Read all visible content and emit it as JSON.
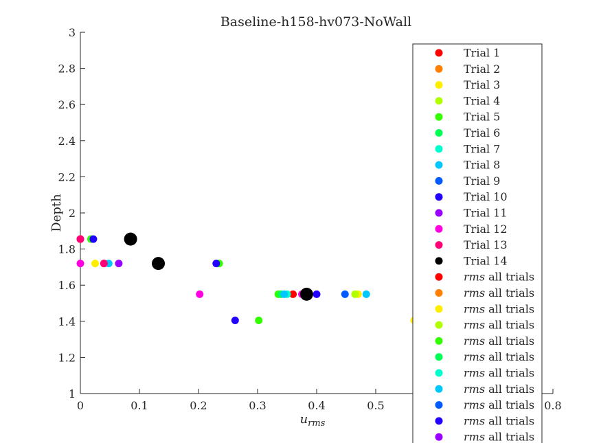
{
  "chart_data": {
    "type": "scatter",
    "title": "Baseline-h158-hv073-NoWall",
    "xlabel": "u",
    "xlabel_sub": "rms",
    "ylabel": "Depth",
    "xlim": [
      0,
      0.8
    ],
    "ylim": [
      1,
      3
    ],
    "xticks": [
      0,
      0.1,
      0.2,
      0.3,
      0.4,
      0.5,
      0.6,
      0.7,
      0.8
    ],
    "yticks": [
      1,
      1.2,
      1.4,
      1.6,
      1.8,
      2,
      2.2,
      2.4,
      2.6,
      2.8,
      3
    ],
    "grid": false,
    "legend_position": "right",
    "series": [
      {
        "name": "Trial 1",
        "color": "#ff0000",
        "points": [
          [
            0.0,
            1.855
          ],
          [
            0.04,
            1.72
          ],
          [
            0.36,
            1.55
          ]
        ]
      },
      {
        "name": "Trial 2",
        "color": "#ff7f00",
        "points": [
          [
            0.0,
            1.855
          ],
          [
            0.04,
            1.72
          ]
        ]
      },
      {
        "name": "Trial 3",
        "color": "#ffee00",
        "points": [
          [
            0.025,
            1.72
          ],
          [
            0.47,
            1.55
          ],
          [
            0.565,
            1.405
          ]
        ]
      },
      {
        "name": "Trial 4",
        "color": "#b2ff00",
        "points": [
          [
            0.018,
            1.855
          ],
          [
            0.465,
            1.55
          ]
        ]
      },
      {
        "name": "Trial 5",
        "color": "#33ff00",
        "points": [
          [
            0.018,
            1.855
          ],
          [
            0.235,
            1.72
          ],
          [
            0.302,
            1.405
          ],
          [
            0.335,
            1.55
          ]
        ]
      },
      {
        "name": "Trial 6",
        "color": "#00ff55",
        "points": [
          [
            0.34,
            1.55
          ]
        ]
      },
      {
        "name": "Trial 7",
        "color": "#00ffcc",
        "points": [
          [
            0.35,
            1.55
          ]
        ]
      },
      {
        "name": "Trial 8",
        "color": "#00c8ff",
        "points": [
          [
            0.048,
            1.72
          ],
          [
            0.345,
            1.55
          ],
          [
            0.484,
            1.55
          ]
        ]
      },
      {
        "name": "Trial 9",
        "color": "#005aff",
        "points": [
          [
            0.448,
            1.55
          ]
        ]
      },
      {
        "name": "Trial 10",
        "color": "#2200ff",
        "points": [
          [
            0.022,
            1.855
          ],
          [
            0.23,
            1.72
          ],
          [
            0.262,
            1.405
          ],
          [
            0.4,
            1.55
          ]
        ]
      },
      {
        "name": "Trial 11",
        "color": "#9900ff",
        "points": [
          [
            0.065,
            1.72
          ]
        ]
      },
      {
        "name": "Trial 12",
        "color": "#ff00e1",
        "points": [
          [
            0.0,
            1.72
          ],
          [
            0.202,
            1.55
          ],
          [
            0.375,
            1.55
          ]
        ]
      },
      {
        "name": "Trial 13",
        "color": "#ff0077",
        "points": [
          [
            0.0,
            1.855
          ],
          [
            0.04,
            1.72
          ]
        ]
      },
      {
        "name": "Trial 14",
        "color": "#000000",
        "size": "large",
        "points": [
          [
            0.085,
            1.855
          ],
          [
            0.132,
            1.72
          ],
          [
            0.383,
            1.55
          ]
        ]
      }
    ],
    "legend_extra": [
      {
        "label": "rms all trials",
        "color": "#ff0000"
      },
      {
        "label": "rms all trials",
        "color": "#ff7f00"
      },
      {
        "label": "rms all trials",
        "color": "#ffee00"
      },
      {
        "label": "rms all trials",
        "color": "#b2ff00"
      },
      {
        "label": "rms all trials",
        "color": "#33ff00"
      },
      {
        "label": "rms all trials",
        "color": "#00ff55"
      },
      {
        "label": "rms all trials",
        "color": "#00ffcc"
      },
      {
        "label": "rms all trials",
        "color": "#00c8ff"
      },
      {
        "label": "rms all trials",
        "color": "#005aff"
      },
      {
        "label": "rms all trials",
        "color": "#2200ff"
      },
      {
        "label": "rms all trials",
        "color": "#9900ff"
      }
    ]
  }
}
